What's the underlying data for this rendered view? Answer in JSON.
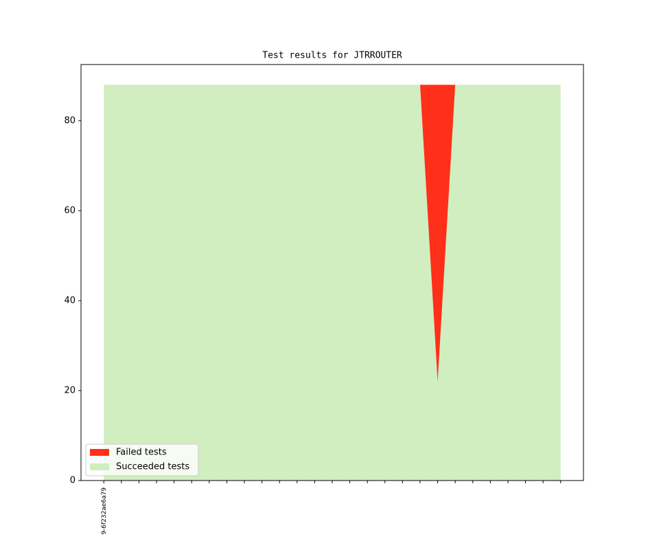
{
  "chart_data": {
    "type": "stacked_area",
    "title": "Test results for JTRROUTER",
    "categories": [
      "9-6f232ae6a79",
      null,
      null,
      null,
      null,
      null,
      null,
      null,
      null,
      null,
      null,
      null,
      null,
      null,
      null,
      null,
      null,
      null,
      null,
      null,
      null,
      null,
      null,
      null,
      null,
      null,
      null
    ],
    "series": [
      {
        "name": "Failed tests",
        "color": "#ff3019",
        "values": [
          0,
          0,
          0,
          0,
          0,
          0,
          0,
          0,
          0,
          0,
          0,
          0,
          0,
          0,
          0,
          0,
          0,
          0,
          0,
          66,
          0,
          0,
          0,
          0,
          0,
          0,
          0
        ]
      },
      {
        "name": "Succeeded tests",
        "color": "#d0eec0",
        "values": [
          88,
          88,
          88,
          88,
          88,
          88,
          88,
          88,
          88,
          88,
          88,
          88,
          88,
          88,
          88,
          88,
          88,
          88,
          88,
          22,
          88,
          88,
          88,
          88,
          88,
          88,
          88
        ]
      }
    ],
    "xlim": [
      -1.3,
      27.3
    ],
    "ylim": [
      0,
      92.5
    ],
    "yticks": [
      0,
      20,
      40,
      60,
      80
    ],
    "legend": "lower left",
    "grid": false
  }
}
